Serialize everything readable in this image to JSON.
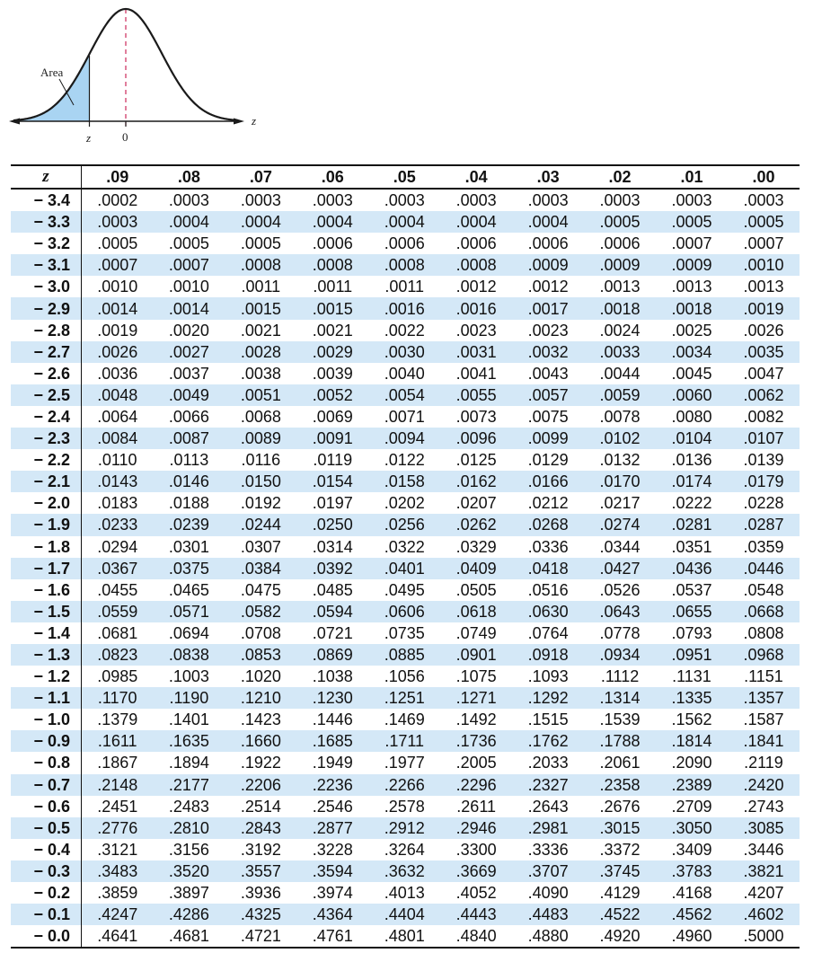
{
  "figure": {
    "area_label": "Area",
    "z_marker_label": "z",
    "zero_label": "0",
    "axis_label": "z",
    "fill_color": "#a9d4f2",
    "curve_color": "#1a1a1a"
  },
  "table": {
    "z_header": "z",
    "column_headers": [
      ".09",
      ".08",
      ".07",
      ".06",
      ".05",
      ".04",
      ".03",
      ".02",
      ".01",
      ".00"
    ],
    "stripe_color": "#d4e8f7",
    "rows": [
      {
        "z": "− 3.4",
        "values": [
          ".0002",
          ".0003",
          ".0003",
          ".0003",
          ".0003",
          ".0003",
          ".0003",
          ".0003",
          ".0003",
          ".0003"
        ]
      },
      {
        "z": "− 3.3",
        "values": [
          ".0003",
          ".0004",
          ".0004",
          ".0004",
          ".0004",
          ".0004",
          ".0004",
          ".0005",
          ".0005",
          ".0005"
        ]
      },
      {
        "z": "− 3.2",
        "values": [
          ".0005",
          ".0005",
          ".0005",
          ".0006",
          ".0006",
          ".0006",
          ".0006",
          ".0006",
          ".0007",
          ".0007"
        ]
      },
      {
        "z": "− 3.1",
        "values": [
          ".0007",
          ".0007",
          ".0008",
          ".0008",
          ".0008",
          ".0008",
          ".0009",
          ".0009",
          ".0009",
          ".0010"
        ]
      },
      {
        "z": "− 3.0",
        "values": [
          ".0010",
          ".0010",
          ".0011",
          ".0011",
          ".0011",
          ".0012",
          ".0012",
          ".0013",
          ".0013",
          ".0013"
        ]
      },
      {
        "z": "− 2.9",
        "values": [
          ".0014",
          ".0014",
          ".0015",
          ".0015",
          ".0016",
          ".0016",
          ".0017",
          ".0018",
          ".0018",
          ".0019"
        ]
      },
      {
        "z": "− 2.8",
        "values": [
          ".0019",
          ".0020",
          ".0021",
          ".0021",
          ".0022",
          ".0023",
          ".0023",
          ".0024",
          ".0025",
          ".0026"
        ]
      },
      {
        "z": "− 2.7",
        "values": [
          ".0026",
          ".0027",
          ".0028",
          ".0029",
          ".0030",
          ".0031",
          ".0032",
          ".0033",
          ".0034",
          ".0035"
        ]
      },
      {
        "z": "− 2.6",
        "values": [
          ".0036",
          ".0037",
          ".0038",
          ".0039",
          ".0040",
          ".0041",
          ".0043",
          ".0044",
          ".0045",
          ".0047"
        ]
      },
      {
        "z": "− 2.5",
        "values": [
          ".0048",
          ".0049",
          ".0051",
          ".0052",
          ".0054",
          ".0055",
          ".0057",
          ".0059",
          ".0060",
          ".0062"
        ]
      },
      {
        "z": "− 2.4",
        "values": [
          ".0064",
          ".0066",
          ".0068",
          ".0069",
          ".0071",
          ".0073",
          ".0075",
          ".0078",
          ".0080",
          ".0082"
        ]
      },
      {
        "z": "− 2.3",
        "values": [
          ".0084",
          ".0087",
          ".0089",
          ".0091",
          ".0094",
          ".0096",
          ".0099",
          ".0102",
          ".0104",
          ".0107"
        ]
      },
      {
        "z": "− 2.2",
        "values": [
          ".0110",
          ".0113",
          ".0116",
          ".0119",
          ".0122",
          ".0125",
          ".0129",
          ".0132",
          ".0136",
          ".0139"
        ]
      },
      {
        "z": "− 2.1",
        "values": [
          ".0143",
          ".0146",
          ".0150",
          ".0154",
          ".0158",
          ".0162",
          ".0166",
          ".0170",
          ".0174",
          ".0179"
        ]
      },
      {
        "z": "− 2.0",
        "values": [
          ".0183",
          ".0188",
          ".0192",
          ".0197",
          ".0202",
          ".0207",
          ".0212",
          ".0217",
          ".0222",
          ".0228"
        ]
      },
      {
        "z": "− 1.9",
        "values": [
          ".0233",
          ".0239",
          ".0244",
          ".0250",
          ".0256",
          ".0262",
          ".0268",
          ".0274",
          ".0281",
          ".0287"
        ]
      },
      {
        "z": "− 1.8",
        "values": [
          ".0294",
          ".0301",
          ".0307",
          ".0314",
          ".0322",
          ".0329",
          ".0336",
          ".0344",
          ".0351",
          ".0359"
        ]
      },
      {
        "z": "− 1.7",
        "values": [
          ".0367",
          ".0375",
          ".0384",
          ".0392",
          ".0401",
          ".0409",
          ".0418",
          ".0427",
          ".0436",
          ".0446"
        ]
      },
      {
        "z": "− 1.6",
        "values": [
          ".0455",
          ".0465",
          ".0475",
          ".0485",
          ".0495",
          ".0505",
          ".0516",
          ".0526",
          ".0537",
          ".0548"
        ]
      },
      {
        "z": "− 1.5",
        "values": [
          ".0559",
          ".0571",
          ".0582",
          ".0594",
          ".0606",
          ".0618",
          ".0630",
          ".0643",
          ".0655",
          ".0668"
        ]
      },
      {
        "z": "− 1.4",
        "values": [
          ".0681",
          ".0694",
          ".0708",
          ".0721",
          ".0735",
          ".0749",
          ".0764",
          ".0778",
          ".0793",
          ".0808"
        ]
      },
      {
        "z": "− 1.3",
        "values": [
          ".0823",
          ".0838",
          ".0853",
          ".0869",
          ".0885",
          ".0901",
          ".0918",
          ".0934",
          ".0951",
          ".0968"
        ]
      },
      {
        "z": "− 1.2",
        "values": [
          ".0985",
          ".1003",
          ".1020",
          ".1038",
          ".1056",
          ".1075",
          ".1093",
          ".1112",
          ".1131",
          ".1151"
        ]
      },
      {
        "z": "− 1.1",
        "values": [
          ".1170",
          ".1190",
          ".1210",
          ".1230",
          ".1251",
          ".1271",
          ".1292",
          ".1314",
          ".1335",
          ".1357"
        ]
      },
      {
        "z": "− 1.0",
        "values": [
          ".1379",
          ".1401",
          ".1423",
          ".1446",
          ".1469",
          ".1492",
          ".1515",
          ".1539",
          ".1562",
          ".1587"
        ]
      },
      {
        "z": "− 0.9",
        "values": [
          ".1611",
          ".1635",
          ".1660",
          ".1685",
          ".1711",
          ".1736",
          ".1762",
          ".1788",
          ".1814",
          ".1841"
        ]
      },
      {
        "z": "− 0.8",
        "values": [
          ".1867",
          ".1894",
          ".1922",
          ".1949",
          ".1977",
          ".2005",
          ".2033",
          ".2061",
          ".2090",
          ".2119"
        ]
      },
      {
        "z": "− 0.7",
        "values": [
          ".2148",
          ".2177",
          ".2206",
          ".2236",
          ".2266",
          ".2296",
          ".2327",
          ".2358",
          ".2389",
          ".2420"
        ]
      },
      {
        "z": "− 0.6",
        "values": [
          ".2451",
          ".2483",
          ".2514",
          ".2546",
          ".2578",
          ".2611",
          ".2643",
          ".2676",
          ".2709",
          ".2743"
        ]
      },
      {
        "z": "− 0.5",
        "values": [
          ".2776",
          ".2810",
          ".2843",
          ".2877",
          ".2912",
          ".2946",
          ".2981",
          ".3015",
          ".3050",
          ".3085"
        ]
      },
      {
        "z": "− 0.4",
        "values": [
          ".3121",
          ".3156",
          ".3192",
          ".3228",
          ".3264",
          ".3300",
          ".3336",
          ".3372",
          ".3409",
          ".3446"
        ]
      },
      {
        "z": "− 0.3",
        "values": [
          ".3483",
          ".3520",
          ".3557",
          ".3594",
          ".3632",
          ".3669",
          ".3707",
          ".3745",
          ".3783",
          ".3821"
        ]
      },
      {
        "z": "− 0.2",
        "values": [
          ".3859",
          ".3897",
          ".3936",
          ".3974",
          ".4013",
          ".4052",
          ".4090",
          ".4129",
          ".4168",
          ".4207"
        ]
      },
      {
        "z": "− 0.1",
        "values": [
          ".4247",
          ".4286",
          ".4325",
          ".4364",
          ".4404",
          ".4443",
          ".4483",
          ".4522",
          ".4562",
          ".4602"
        ]
      },
      {
        "z": "− 0.0",
        "values": [
          ".4641",
          ".4681",
          ".4721",
          ".4761",
          ".4801",
          ".4840",
          ".4880",
          ".4920",
          ".4960",
          ".5000"
        ]
      }
    ]
  }
}
